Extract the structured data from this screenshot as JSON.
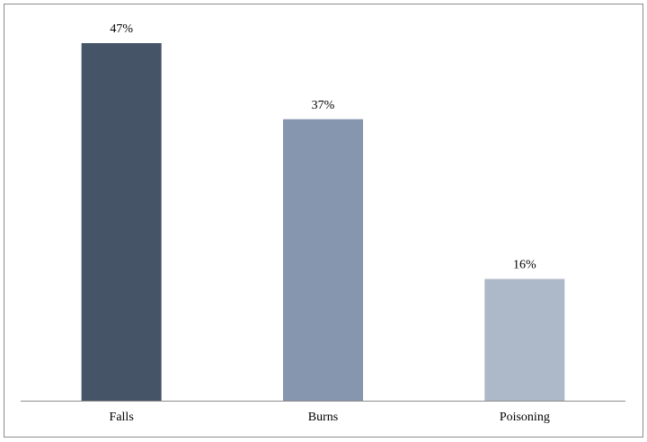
{
  "chart_data": {
    "type": "bar",
    "categories": [
      "Falls",
      "Burns",
      "Poisoning"
    ],
    "values": [
      47,
      37,
      16
    ],
    "value_labels": [
      "47%",
      "37%",
      "16%"
    ],
    "colors": [
      "#465468",
      "#8696ae",
      "#adb8c8"
    ]
  }
}
